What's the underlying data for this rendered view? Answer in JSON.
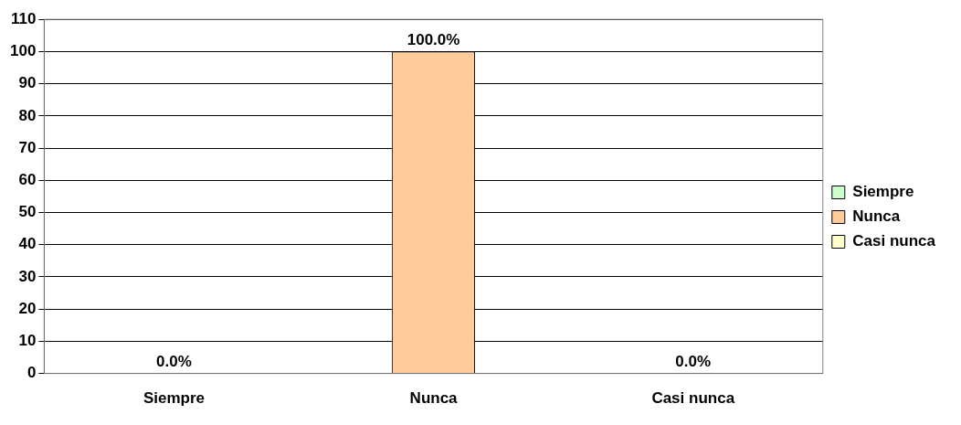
{
  "chart_data": {
    "type": "bar",
    "categories": [
      "Siempre",
      "Nunca",
      "Casi nunca"
    ],
    "series": [
      {
        "name": "Siempre",
        "color": "#ccffcc",
        "values": [
          0,
          null,
          null
        ],
        "value_labels": [
          "0.0%",
          null,
          null
        ]
      },
      {
        "name": "Nunca",
        "color": "#ffcc99",
        "values": [
          null,
          100,
          null
        ],
        "value_labels": [
          null,
          "100.0%",
          null
        ]
      },
      {
        "name": "Casi nunca",
        "color": "#ffffcc",
        "values": [
          null,
          null,
          0
        ],
        "value_labels": [
          null,
          null,
          "0.0%"
        ]
      }
    ],
    "ylim": [
      0,
      110
    ],
    "yticks": [
      0,
      10,
      20,
      30,
      40,
      50,
      60,
      70,
      80,
      90,
      100,
      110
    ],
    "grid": "y",
    "legend": "right"
  }
}
